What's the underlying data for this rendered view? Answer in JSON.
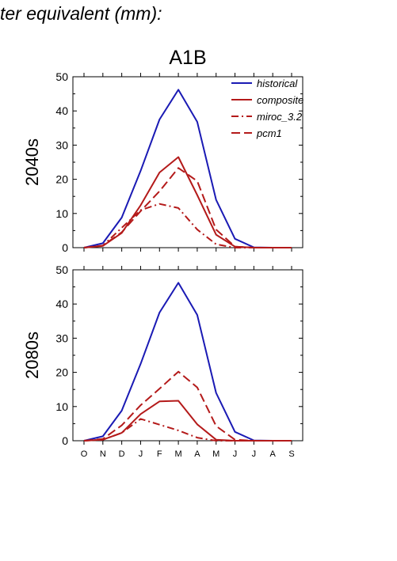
{
  "header_text": "ter equivalent (mm):",
  "title": "A1B",
  "legend": {
    "historical": "historical",
    "composite": "composite",
    "miroc": "miroc_3.2",
    "pcm1": "pcm1"
  },
  "colors": {
    "historical": "#1a1ab4",
    "projection": "#b41a1a"
  },
  "chart_data": [
    {
      "type": "line",
      "panel_label": "2040s",
      "title": "A1B",
      "x": [
        "O",
        "N",
        "D",
        "J",
        "F",
        "M",
        "A",
        "M",
        "J",
        "J",
        "A",
        "S"
      ],
      "ylim": [
        0,
        50
      ],
      "yticks": [
        0,
        10,
        20,
        30,
        40,
        50
      ],
      "legend_position": "top-right",
      "series": [
        {
          "name": "historical",
          "style": "solid",
          "color": "#1a1ab4",
          "values": [
            0,
            1.3,
            8.8,
            22.5,
            37.5,
            46.2,
            36.8,
            14,
            2.6,
            0.1,
            0,
            0
          ]
        },
        {
          "name": "composite",
          "style": "solid",
          "color": "#b41a1a",
          "values": [
            0,
            0.5,
            4.3,
            12.4,
            22,
            26.5,
            15.4,
            3.8,
            0.3,
            0,
            0,
            0
          ]
        },
        {
          "name": "miroc_3.2",
          "style": "dashdot",
          "color": "#b41a1a",
          "values": [
            0,
            0.6,
            5.8,
            11,
            12.8,
            11.6,
            5.3,
            1,
            0,
            0,
            0,
            0
          ]
        },
        {
          "name": "pcm1",
          "style": "dash",
          "color": "#b41a1a",
          "values": [
            0,
            0.6,
            4.5,
            10.7,
            16.5,
            23.3,
            19.5,
            5.3,
            0.3,
            0,
            0,
            0
          ]
        }
      ]
    },
    {
      "type": "line",
      "panel_label": "2080s",
      "x": [
        "O",
        "N",
        "D",
        "J",
        "F",
        "M",
        "A",
        "M",
        "J",
        "J",
        "A",
        "S"
      ],
      "ylim": [
        0,
        50
      ],
      "yticks": [
        0,
        10,
        20,
        30,
        40,
        50
      ],
      "series": [
        {
          "name": "historical",
          "style": "solid",
          "color": "#1a1ab4",
          "values": [
            0,
            1.3,
            8.8,
            22.5,
            37.5,
            46.2,
            36.8,
            14,
            2.6,
            0.1,
            0,
            0
          ]
        },
        {
          "name": "composite",
          "style": "solid",
          "color": "#b41a1a",
          "values": [
            0,
            0.3,
            2.3,
            7.8,
            11.5,
            11.7,
            4.8,
            0.3,
            0,
            0,
            0,
            0
          ]
        },
        {
          "name": "miroc_3.2",
          "style": "dashdot",
          "color": "#b41a1a",
          "values": [
            0,
            0.3,
            2.3,
            6.4,
            4.7,
            3,
            0.9,
            0,
            0,
            0,
            0,
            0
          ]
        },
        {
          "name": "pcm1",
          "style": "dash",
          "color": "#b41a1a",
          "values": [
            0,
            0.5,
            4.5,
            10.4,
            15.2,
            20.2,
            15.6,
            4.3,
            0.3,
            0,
            0,
            0
          ]
        }
      ]
    }
  ]
}
